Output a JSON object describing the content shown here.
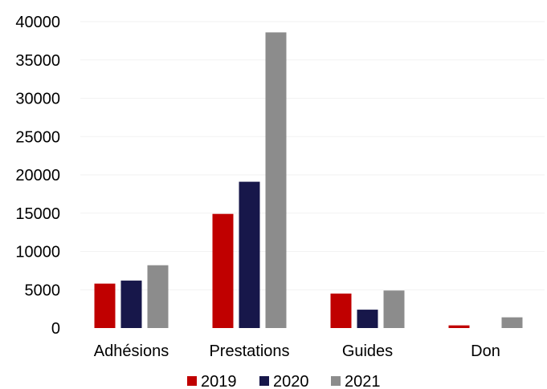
{
  "chart_data": {
    "type": "bar",
    "categories": [
      "Adhésions",
      "Prestations",
      "Guides",
      "Don"
    ],
    "series": [
      {
        "name": "2019",
        "color": "#c00000",
        "values": [
          5800,
          14900,
          4500,
          350
        ]
      },
      {
        "name": "2020",
        "color": "#17174a",
        "values": [
          6200,
          19100,
          2400,
          0
        ]
      },
      {
        "name": "2021",
        "color": "#8c8c8c",
        "values": [
          8200,
          38600,
          4900,
          1400
        ]
      }
    ],
    "ylim": [
      0,
      40000
    ],
    "yticks": [
      0,
      5000,
      10000,
      15000,
      20000,
      25000,
      30000,
      35000,
      40000
    ],
    "legend_position": "bottom",
    "grid": true
  }
}
